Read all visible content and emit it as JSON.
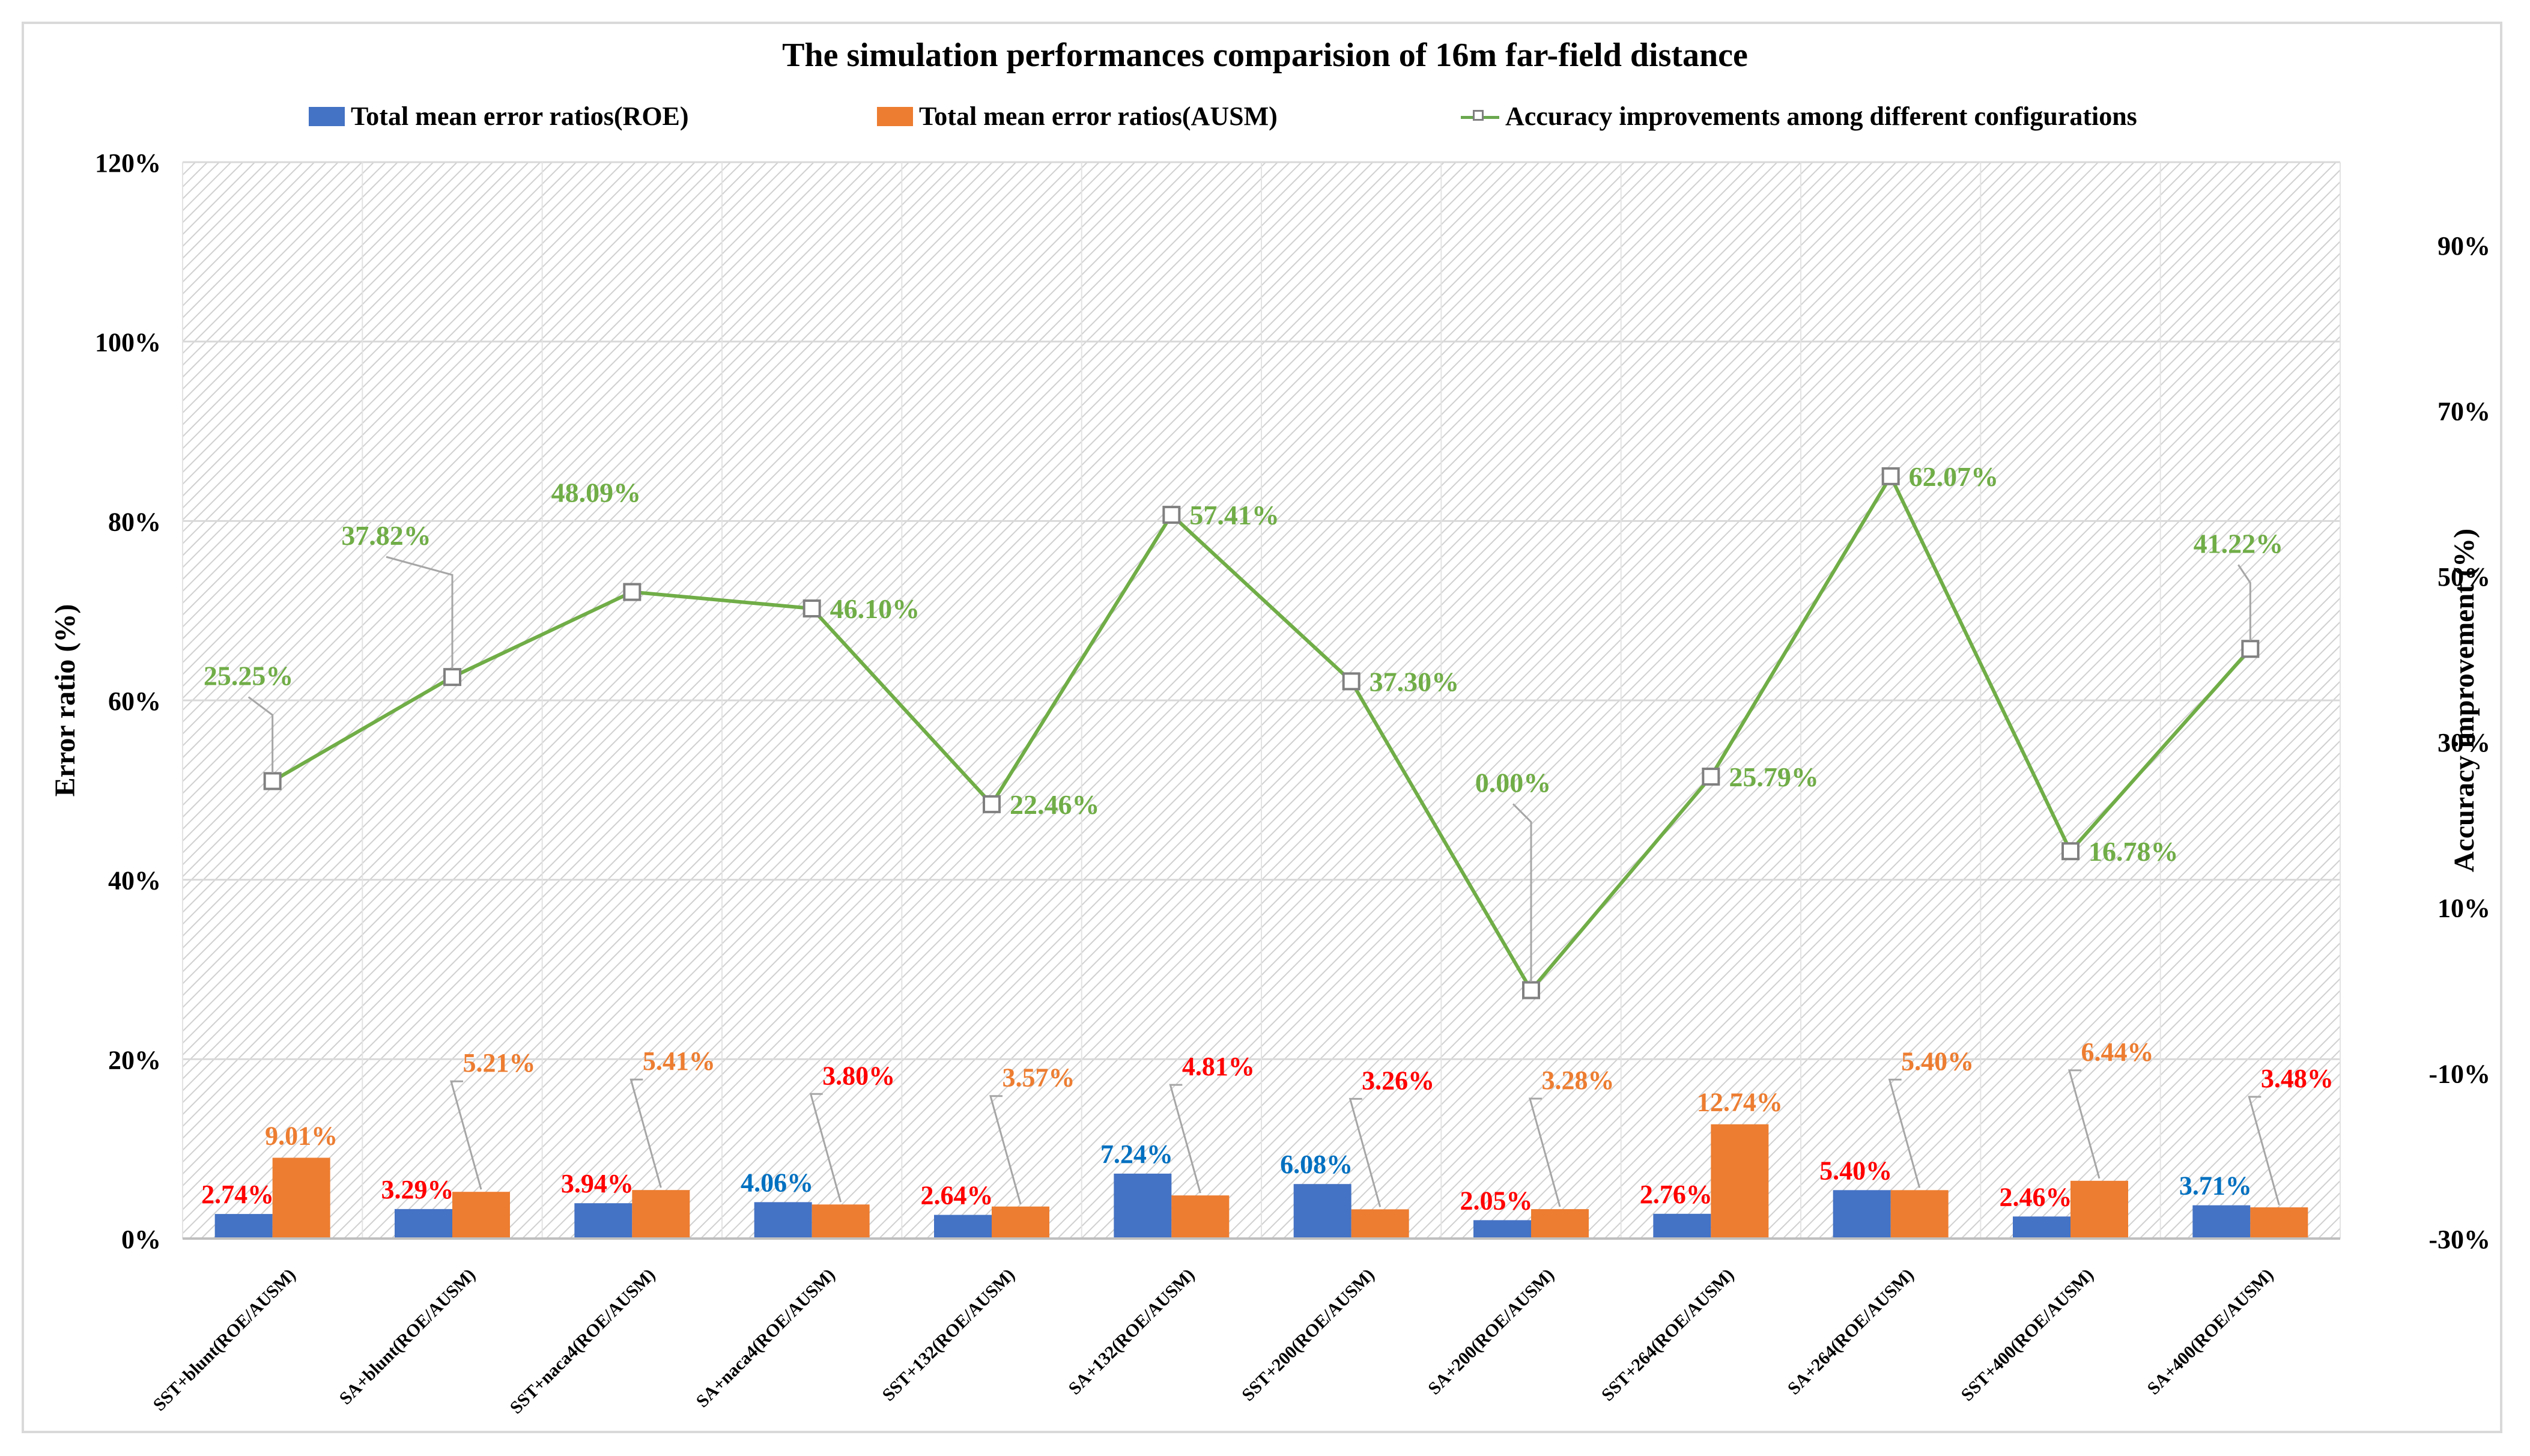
{
  "chart_data": {
    "type": "bar+line",
    "title": "The simulation performances comparision of 16m far-field distance",
    "ylabel": "Error ratio (%)",
    "y2label": "Accuracy improvement (%)",
    "ylim": [
      0,
      120
    ],
    "y2lim": [
      -30,
      100
    ],
    "yticks": [
      "0%",
      "20%",
      "40%",
      "60%",
      "80%",
      "100%",
      "120%"
    ],
    "y2ticks": [
      "-30%",
      "-10%",
      "10%",
      "30%",
      "50%",
      "70%",
      "90%"
    ],
    "categories": [
      "SST+blunt(ROE/AUSM)",
      "SA+blunt(ROE/AUSM)",
      "SST+naca4(ROE/AUSM)",
      "SA+naca4(ROE/AUSM)",
      "SST+132(ROE/AUSM)",
      "SA+132(ROE/AUSM)",
      "SST+200(ROE/AUSM)",
      "SA+200(ROE/AUSM)",
      "SST+264(ROE/AUSM)",
      "SA+264(ROE/AUSM)",
      "SST+400(ROE/AUSM)",
      "SA+400(ROE/AUSM)"
    ],
    "series": [
      {
        "name": "Total mean error ratios(ROE)",
        "kind": "bar",
        "color": "#4472c4",
        "values": [
          2.74,
          3.29,
          3.94,
          4.06,
          2.64,
          7.24,
          6.08,
          2.05,
          2.76,
          5.4,
          2.46,
          3.71
        ],
        "labels": [
          "2.74%",
          "3.29%",
          "3.94%",
          "4.06%",
          "2.64%",
          "7.24%",
          "6.08%",
          "2.05%",
          "2.76%",
          "5.40%",
          "2.46%",
          "3.71%"
        ],
        "label_colors": [
          "#ff0000",
          "#ff0000",
          "#ff0000",
          "#0070c0",
          "#ff0000",
          "#0070c0",
          "#0070c0",
          "#ff0000",
          "#ff0000",
          "#ff0000",
          "#ff0000",
          "#0070c0"
        ]
      },
      {
        "name": "Total mean error ratios(AUSM)",
        "kind": "bar",
        "color": "#ed7d31",
        "values": [
          9.01,
          5.21,
          5.41,
          3.8,
          3.57,
          4.81,
          3.26,
          3.28,
          12.74,
          5.4,
          6.44,
          3.48
        ],
        "labels": [
          "9.01%",
          "5.21%",
          "5.41%",
          "3.80%",
          "3.57%",
          "4.81%",
          "3.26%",
          "3.28%",
          "12.74%",
          "5.40%",
          "6.44%",
          "3.48%"
        ],
        "label_colors": [
          "#ed7d31",
          "#ed7d31",
          "#ed7d31",
          "#ff0000",
          "#ed7d31",
          "#ff0000",
          "#ff0000",
          "#ed7d31",
          "#ed7d31",
          "#ed7d31",
          "#ed7d31",
          "#ff0000"
        ]
      },
      {
        "name": "Accuracy improvements among different configurations",
        "kind": "line",
        "axis": "right",
        "color": "#70ad47",
        "values": [
          25.25,
          37.82,
          48.09,
          46.1,
          22.46,
          57.41,
          37.3,
          0.0,
          25.79,
          62.07,
          16.78,
          41.22
        ],
        "labels": [
          "25.25%",
          "37.82%",
          "48.09%",
          "46.10%",
          "22.46%",
          "57.41%",
          "37.30%",
          "0.00%",
          "25.79%",
          "62.07%",
          "16.78%",
          "41.22%"
        ]
      }
    ]
  },
  "colors": {
    "grid": "#d9d9d9",
    "marker_edge": "#808080",
    "leader": "#a6a6a6"
  }
}
